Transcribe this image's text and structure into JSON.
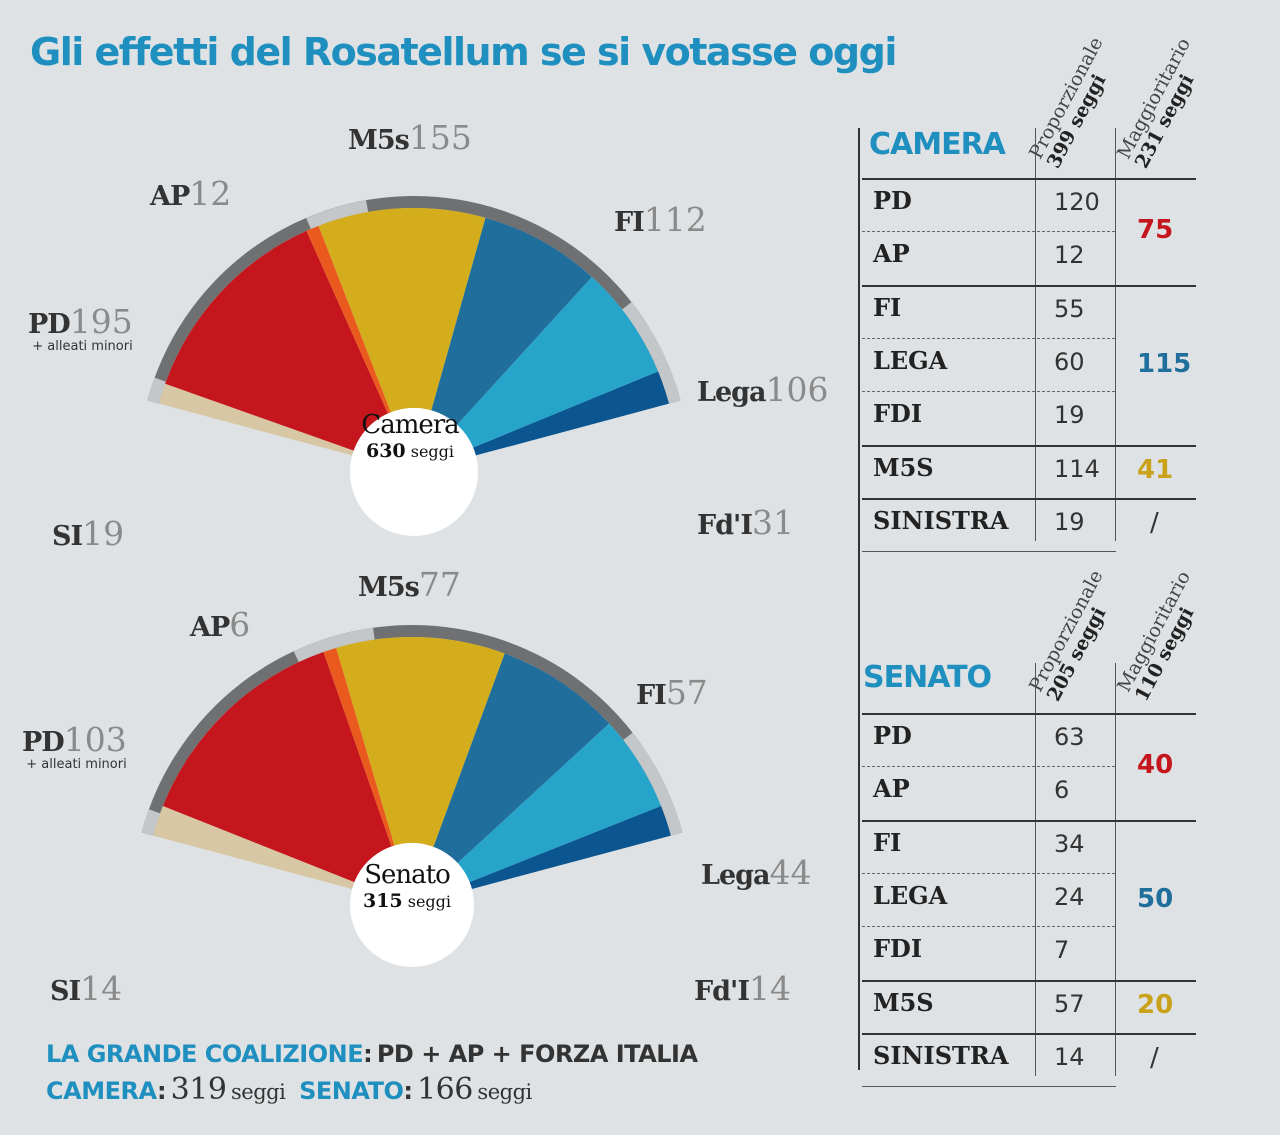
{
  "title": "Gli effetti del Rosatellum se si votasse oggi",
  "chart_data": [
    {
      "type": "pie",
      "subtype": "parliament-semicircle",
      "center_label": "Camera",
      "total": 630,
      "total_unit": "seggi",
      "slices": [
        {
          "party": "SI",
          "seats": 19,
          "color": "#d8c7a4"
        },
        {
          "party": "PD",
          "seats": 195,
          "note": "+ alleati minori",
          "color": "#c4161c"
        },
        {
          "party": "AP",
          "seats": 12,
          "color": "#ea5a1e"
        },
        {
          "party": "M5s",
          "seats": 155,
          "color": "#d4ad1c"
        },
        {
          "party": "FI",
          "seats": 112,
          "color": "#1f6e9c"
        },
        {
          "party": "Lega",
          "seats": 106,
          "color": "#27a4c9"
        },
        {
          "party": "Fd'I",
          "seats": 31,
          "color": "#0b5590"
        }
      ]
    },
    {
      "type": "pie",
      "subtype": "parliament-semicircle",
      "center_label": "Senato",
      "total": 315,
      "total_unit": "seggi",
      "slices": [
        {
          "party": "SI",
          "seats": 14,
          "color": "#d8c7a4"
        },
        {
          "party": "PD",
          "seats": 103,
          "note": "+ alleati minori",
          "color": "#c4161c"
        },
        {
          "party": "AP",
          "seats": 6,
          "color": "#ea5a1e"
        },
        {
          "party": "M5s",
          "seats": 77,
          "color": "#d4ad1c"
        },
        {
          "party": "FI",
          "seats": 57,
          "color": "#1f6e9c"
        },
        {
          "party": "Lega",
          "seats": 44,
          "color": "#27a4c9"
        },
        {
          "party": "Fd'I",
          "seats": 14,
          "color": "#0b5590"
        }
      ]
    },
    {
      "type": "table",
      "title": "CAMERA",
      "columns": [
        {
          "name": "Proporzionale",
          "seats": "399 seggi"
        },
        {
          "name": "Maggioritario",
          "seats": "231 seggi"
        }
      ],
      "rows": [
        {
          "party": "PD",
          "prop": "120"
        },
        {
          "party": "AP",
          "prop": "12"
        },
        {
          "party": "FI",
          "prop": "55"
        },
        {
          "party": "LEGA",
          "prop": "60"
        },
        {
          "party": "FDI",
          "prop": "19"
        },
        {
          "party": "M5S",
          "prop": "114"
        },
        {
          "party": "SINISTRA",
          "prop": "19"
        }
      ],
      "majoritarian": [
        {
          "rows": [
            "PD",
            "AP"
          ],
          "value": "75",
          "color": "#c4161c"
        },
        {
          "rows": [
            "FI",
            "LEGA",
            "FDI"
          ],
          "value": "115",
          "color": "#1f6e9c"
        },
        {
          "rows": [
            "M5S"
          ],
          "value": "41",
          "color": "#c9a21a"
        },
        {
          "rows": [
            "SINISTRA"
          ],
          "value": "/",
          "color": "#333333"
        }
      ]
    },
    {
      "type": "table",
      "title": "SENATO",
      "columns": [
        {
          "name": "Proporzionale",
          "seats": "205 seggi"
        },
        {
          "name": "Maggioritario",
          "seats": "110 seggi"
        }
      ],
      "rows": [
        {
          "party": "PD",
          "prop": "63"
        },
        {
          "party": "AP",
          "prop": "6"
        },
        {
          "party": "FI",
          "prop": "34"
        },
        {
          "party": "LEGA",
          "prop": "24"
        },
        {
          "party": "FDI",
          "prop": "7"
        },
        {
          "party": "M5S",
          "prop": "57"
        },
        {
          "party": "SINISTRA",
          "prop": "14"
        }
      ],
      "majoritarian": [
        {
          "rows": [
            "PD",
            "AP"
          ],
          "value": "40",
          "color": "#c4161c"
        },
        {
          "rows": [
            "FI",
            "LEGA",
            "FDI"
          ],
          "value": "50",
          "color": "#1f6e9c"
        },
        {
          "rows": [
            "M5S"
          ],
          "value": "20",
          "color": "#c9a21a"
        },
        {
          "rows": [
            "SINISTRA"
          ],
          "value": "/",
          "color": "#333333"
        }
      ]
    }
  ],
  "footer": {
    "line1_label": "LA GRANDE COALIZIONE",
    "line1_colon": ":",
    "line1_text": "PD + AP + FORZA ITALIA",
    "camera_label": "CAMERA",
    "camera_colon": ":",
    "camera_value": "319",
    "camera_unit": "seggi",
    "senato_label": "SENATO",
    "senato_colon": ":",
    "senato_value": "166",
    "senato_unit": "seggi"
  }
}
